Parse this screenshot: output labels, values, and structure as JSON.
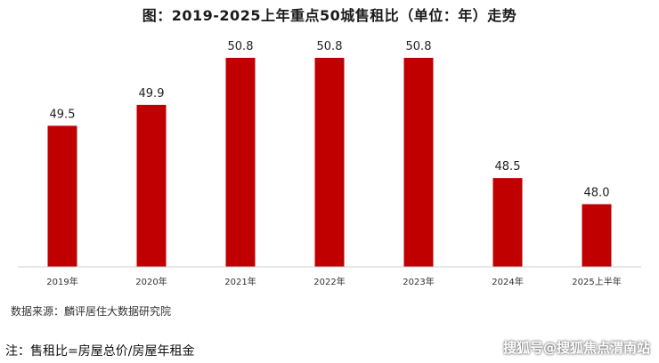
{
  "chart_data": {
    "type": "bar",
    "title": "图：2019-2025上年重点50城售租比（单位：年）走势",
    "categories": [
      "2019年",
      "2020年",
      "2021年",
      "2022年",
      "2023年",
      "2024年",
      "2025上半年"
    ],
    "values": [
      49.5,
      49.9,
      50.8,
      50.8,
      50.8,
      48.5,
      48.0
    ],
    "value_labels": [
      "49.5",
      "49.9",
      "50.8",
      "50.8",
      "50.8",
      "48.5",
      "48.0"
    ],
    "ylim": [
      46.8,
      50.8
    ],
    "grid": false,
    "legend": "none",
    "bar_color": "#c00000"
  },
  "source": "数据来源：麟评居住大数据研究院",
  "note": "注：售租比=房屋总价/房屋年租金",
  "watermark": "搜狐号@搜狐焦点渭南站"
}
